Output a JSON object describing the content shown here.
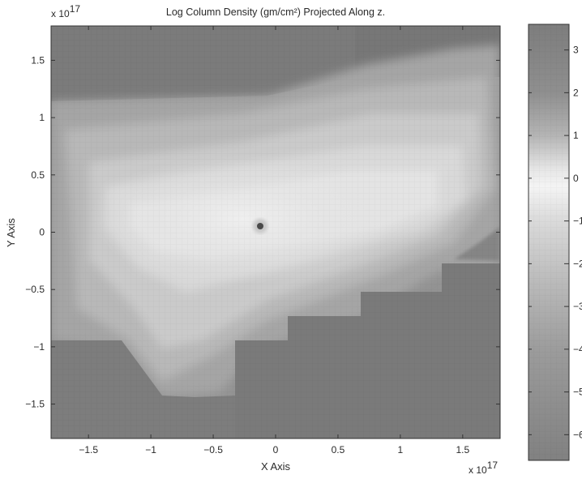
{
  "chart_data": {
    "type": "heatmap",
    "title": "Log Column Density (gm/cm²) Projected Along z.",
    "xlabel": "X Axis",
    "ylabel": "Y Axis",
    "x_multiplier": "x 10",
    "x_multiplier_exponent": "17",
    "y_multiplier": "x 10",
    "y_multiplier_exponent": "17",
    "xlim": [
      -1.8,
      1.8
    ],
    "ylim": [
      -1.8,
      1.8
    ],
    "xticks": [
      -1.5,
      -1,
      -0.5,
      0,
      0.5,
      1,
      1.5
    ],
    "xtick_labels": [
      "−1.5",
      "−1",
      "−0.5",
      "0",
      "0.5",
      "1",
      "1.5"
    ],
    "yticks": [
      1.5,
      1,
      0.5,
      0,
      -0.5,
      -1,
      -1.5
    ],
    "ytick_labels": [
      "1.5",
      "1",
      "0.5",
      "0",
      "−0.5",
      "−1",
      "−1.5"
    ],
    "colorbar": {
      "range": [
        -6.6,
        3.6
      ],
      "ticks": [
        3,
        2,
        1,
        0,
        -1,
        -2,
        -3,
        -4,
        -5,
        -6
      ],
      "tick_labels": [
        "3",
        "2",
        "1",
        "0",
        "−1",
        "−2",
        "−3",
        "−4",
        "−5",
        "−6"
      ]
    },
    "colorbar_colors": [
      {
        "value": 3.6,
        "color": "#7d7d7d"
      },
      {
        "value": 2.0,
        "color": "#8f8f8f"
      },
      {
        "value": 1.0,
        "color": "#b4b4b4"
      },
      {
        "value": 0.2,
        "color": "#e6e6e6"
      },
      {
        "value": -0.2,
        "color": "#f4f4f4"
      },
      {
        "value": -1.0,
        "color": "#dadada"
      },
      {
        "value": -2.5,
        "color": "#b9b9b9"
      },
      {
        "value": -4.0,
        "color": "#9c9c9c"
      },
      {
        "value": -6.6,
        "color": "#818181"
      }
    ],
    "grid": false,
    "features": [
      {
        "name": "central dense core",
        "x": -0.12,
        "y": 0.06,
        "value": 3
      }
    ]
  }
}
